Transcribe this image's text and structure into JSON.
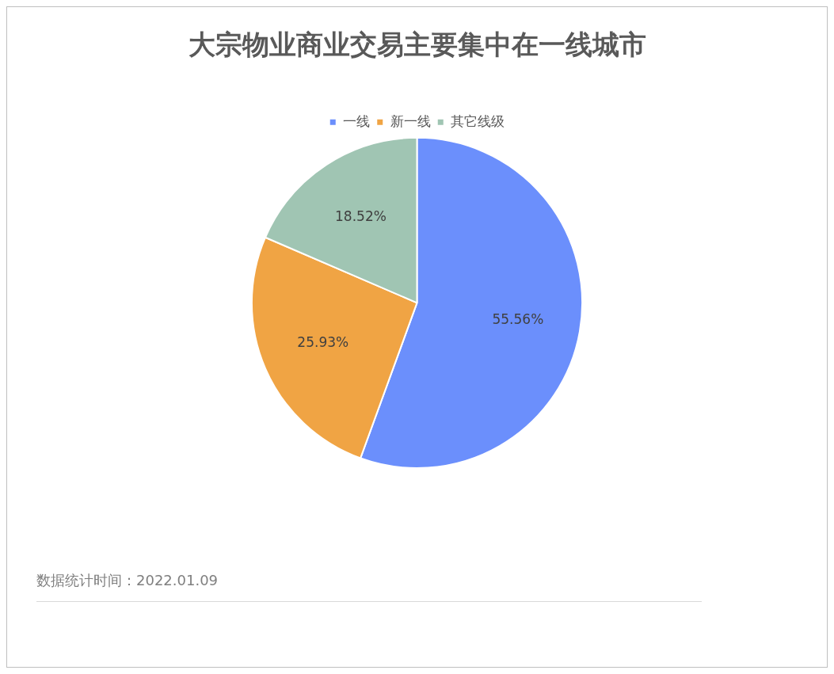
{
  "chart_data": {
    "type": "pie",
    "title": "大宗物业商业交易主要集中在一线城市",
    "categories": [
      "一线",
      "新一线",
      "其它线级"
    ],
    "values": [
      55.56,
      25.93,
      18.52
    ],
    "colors": [
      "#6b8ffc",
      "#f0a444",
      "#a0c5b3"
    ],
    "value_labels": [
      "55.56%",
      "25.93%",
      "18.52%"
    ],
    "legend": "top",
    "annotations": [
      "数据统计时间：2022.01.09"
    ]
  }
}
